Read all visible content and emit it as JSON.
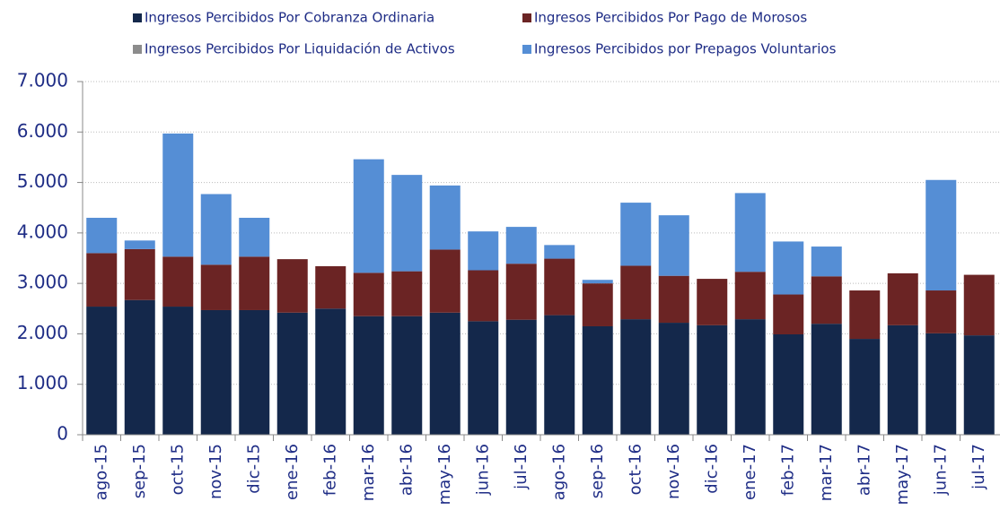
{
  "chart_data": {
    "type": "stacked-bar",
    "categories": [
      "ago-15",
      "sep-15",
      "oct-15",
      "nov-15",
      "dic-15",
      "ene-16",
      "feb-16",
      "mar-16",
      "abr-16",
      "may-16",
      "jun-16",
      "jul-16",
      "ago-16",
      "sep-16",
      "oct-16",
      "nov-16",
      "dic-16",
      "ene-17",
      "feb-17",
      "mar-17",
      "abr-17",
      "may-17",
      "jun-17",
      "jul-17"
    ],
    "series": [
      {
        "name": "Ingresos Percibidos Por Cobranza Ordinaria",
        "color": "#14284b",
        "values": [
          2540,
          2670,
          2540,
          2470,
          2470,
          2420,
          2500,
          2350,
          2350,
          2420,
          2250,
          2280,
          2370,
          2150,
          2290,
          2220,
          2170,
          2290,
          1990,
          2200,
          1900,
          2170,
          2010,
          1970
        ]
      },
      {
        "name": "Ingresos Percibidos Por Pago de Morosos",
        "color": "#6b2424",
        "values": [
          1060,
          1010,
          990,
          900,
          1060,
          1060,
          840,
          860,
          890,
          1250,
          1010,
          1110,
          1120,
          850,
          1060,
          930,
          920,
          940,
          790,
          940,
          960,
          1030,
          850,
          1200
        ]
      },
      {
        "name": "Ingresos Percibidos Por Liquidación de Activos",
        "color": "#8c8c8c",
        "values": [
          0,
          0,
          0,
          0,
          0,
          0,
          0,
          0,
          0,
          0,
          0,
          0,
          0,
          0,
          0,
          0,
          0,
          0,
          0,
          0,
          0,
          0,
          0,
          0
        ]
      },
      {
        "name": "Ingresos Percibidos por Prepagos Voluntarios",
        "color": "#558ed5",
        "values": [
          700,
          170,
          2440,
          1400,
          770,
          0,
          0,
          2250,
          1910,
          1270,
          770,
          730,
          270,
          70,
          1250,
          1200,
          0,
          1560,
          1050,
          590,
          0,
          0,
          2190,
          0
        ]
      }
    ],
    "ylim": [
      0,
      7000
    ],
    "yticks": [
      0,
      {
        "value": 1000,
        "label": "1.000"
      },
      {
        "value": 2000,
        "label": "2.000"
      },
      {
        "value": 3000,
        "label": "3.000"
      },
      {
        "value": 4000,
        "label": "4.000"
      },
      {
        "value": 5000,
        "label": "5.000"
      },
      {
        "value": 6000,
        "label": "6.000"
      },
      {
        "value": 7000,
        "label": "7.000"
      }
    ],
    "grid": true
  }
}
